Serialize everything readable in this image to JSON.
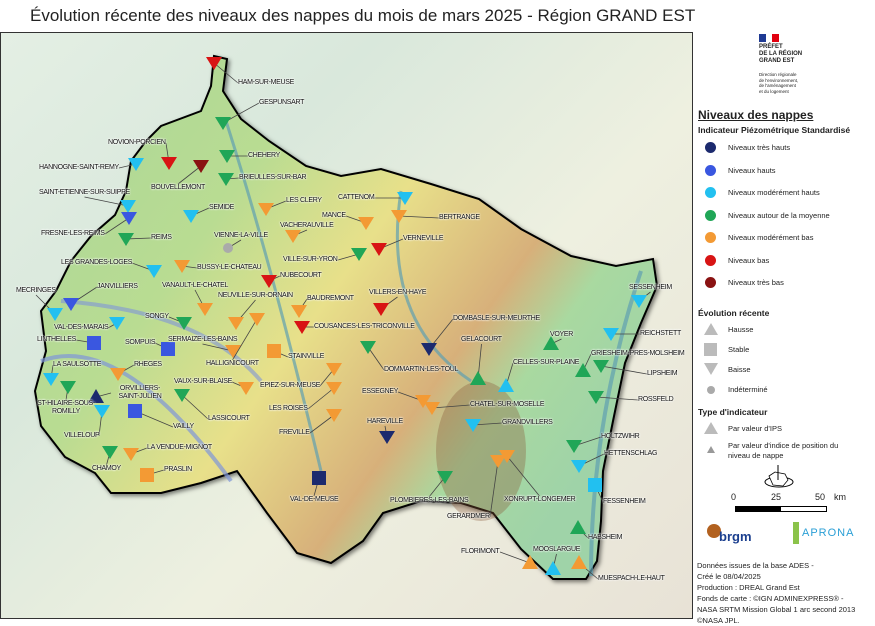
{
  "title": "Évolution récente des niveaux des nappes du mois de mars 2025 - Région GRAND EST",
  "colors": {
    "tres_hauts": "#1c2a6e",
    "hauts": "#3a57e0",
    "mod_hauts": "#22c0f0",
    "moyenne": "#20a657",
    "mod_bas": "#f39a34",
    "bas": "#d81414",
    "tres_bas": "#8a1212",
    "indetermine": "#aaaaaa"
  },
  "legend": {
    "prefet": [
      "PRÉFET",
      "DE LA RÉGION",
      "GRAND EST"
    ],
    "dreal": [
      "Direction régionale",
      "de l'environnement,",
      "de l'aménagement",
      "et du logement"
    ],
    "heading": "Niveaux des nappes",
    "ips_heading": "Indicateur Piézométrique Standardisé",
    "levels": [
      {
        "key": "tres_hauts",
        "label": "Niveaux très hauts"
      },
      {
        "key": "hauts",
        "label": "Niveaux hauts"
      },
      {
        "key": "mod_hauts",
        "label": "Niveaux modérément hauts"
      },
      {
        "key": "moyenne",
        "label": "Niveaux autour de la moyenne"
      },
      {
        "key": "mod_bas",
        "label": "Niveaux modérément bas"
      },
      {
        "key": "bas",
        "label": "Niveaux bas"
      },
      {
        "key": "tres_bas",
        "label": "Niveaux très bas"
      }
    ],
    "trend_heading": "Évolution récente",
    "trends": [
      {
        "key": "hausse",
        "label": "Hausse"
      },
      {
        "key": "stable",
        "label": "Stable"
      },
      {
        "key": "baisse",
        "label": "Baisse"
      },
      {
        "key": "indetermine",
        "label": "Indéterminé"
      }
    ],
    "type_heading": "Type d'indicateur",
    "types": [
      {
        "label": "Par valeur d'IPS"
      },
      {
        "label": "Par valeur d'indice de position du niveau de nappe"
      }
    ],
    "scale": {
      "ticks": [
        "0",
        "25",
        "50"
      ],
      "unit": "km"
    },
    "logos": {
      "brgm": "brgm",
      "apron": "APRONA"
    },
    "credits": [
      "Données issues de la base ADES -",
      "Créé le 08/04/2025",
      "Production : DREAL Grand Est",
      "Fonds de carte : ©IGN ADMINEXPRESS® -",
      "NASA SRTM Mission Global 1 arc second 2013",
      "©NASA JPL."
    ]
  },
  "stations": [
    {
      "name": "HAM-SUR-MEUSE",
      "level": "bas",
      "trend": "baisse"
    },
    {
      "name": "GESPUNSART",
      "level": "moyenne",
      "trend": "baisse"
    },
    {
      "name": "NOVION-PORCIEN",
      "level": "bas",
      "trend": "baisse"
    },
    {
      "name": "HANNOGNE-SAINT-REMY",
      "level": "mod_hauts",
      "trend": "baisse"
    },
    {
      "name": "CHEHERY",
      "level": "moyenne",
      "trend": "baisse"
    },
    {
      "name": "BOUVELLEMONT",
      "level": "tres_bas",
      "trend": "baisse"
    },
    {
      "name": "BRIEULLES-SUR-BAR",
      "level": "moyenne",
      "trend": "baisse"
    },
    {
      "name": "SAINT-ETIENNE-SUR-SUIPPE",
      "level": "mod_hauts",
      "trend": "baisse"
    },
    {
      "name": "FRESNE-LES-REIMS",
      "level": "hauts",
      "trend": "baisse"
    },
    {
      "name": "SEMIDE",
      "level": "mod_hauts",
      "trend": "baisse"
    },
    {
      "name": "LES CLERY",
      "level": "mod_bas",
      "trend": "baisse"
    },
    {
      "name": "REIMS",
      "level": "moyenne",
      "trend": "baisse"
    },
    {
      "name": "VIENNE-LA-VILLE",
      "level": "indetermine",
      "trend": "indetermine"
    },
    {
      "name": "CATTENOM",
      "level": "mod_hauts",
      "trend": "baisse"
    },
    {
      "name": "MANCE",
      "level": "mod_bas",
      "trend": "baisse"
    },
    {
      "name": "BERTRANGE",
      "level": "mod_bas",
      "trend": "baisse"
    },
    {
      "name": "VACHERAUVILLE",
      "level": "mod_bas",
      "trend": "baisse"
    },
    {
      "name": "VERNEVILLE",
      "level": "bas",
      "trend": "baisse"
    },
    {
      "name": "VILLE-SUR-YRON",
      "level": "moyenne",
      "trend": "baisse"
    },
    {
      "name": "BUSSY-LE-CHATEAU",
      "level": "mod_bas",
      "trend": "baisse"
    },
    {
      "name": "LES GRANDES-LOGES",
      "level": "mod_hauts",
      "trend": "baisse"
    },
    {
      "name": "NUBECOURT",
      "level": "bas",
      "trend": "baisse"
    },
    {
      "name": "MECRINGES",
      "level": "mod_hauts",
      "trend": "baisse"
    },
    {
      "name": "JANVILLIERS",
      "level": "hauts",
      "trend": "baisse"
    },
    {
      "name": "VANAULT-LE-CHATEL",
      "level": "mod_bas",
      "trend": "baisse"
    },
    {
      "name": "NEUVILLE-SUR-ORNAIN",
      "level": "mod_bas",
      "trend": "baisse"
    },
    {
      "name": "BAUDREMONT",
      "level": "mod_bas",
      "trend": "baisse"
    },
    {
      "name": "VILLERS-EN-HAYE",
      "level": "bas",
      "trend": "baisse"
    },
    {
      "name": "VAL-DES-MARAIS",
      "level": "mod_hauts",
      "trend": "baisse"
    },
    {
      "name": "SONGY",
      "level": "moyenne",
      "trend": "baisse"
    },
    {
      "name": "COUSANCES-LES-TRICONVILLE",
      "level": "bas",
      "trend": "baisse"
    },
    {
      "name": "DOMBASLE-SUR-MEURTHE",
      "level": "tres_hauts",
      "trend": "baisse"
    },
    {
      "name": "LINTHELLES",
      "level": "hauts",
      "trend": "stable"
    },
    {
      "name": "SOMPUIS",
      "level": "hauts",
      "trend": "stable"
    },
    {
      "name": "SERMAIZE-LES-BAINS",
      "level": "mod_bas",
      "trend": "baisse"
    },
    {
      "name": "HALLIGNICOURT",
      "level": "mod_bas",
      "trend": "baisse"
    },
    {
      "name": "STAINVILLE",
      "level": "mod_bas",
      "trend": "stable"
    },
    {
      "name": "DOMMARTIN-LES-TOUL",
      "level": "moyenne",
      "trend": "baisse"
    },
    {
      "name": "GELACOURT",
      "level": "moyenne",
      "trend": "hausse"
    },
    {
      "name": "VOYER",
      "level": "moyenne",
      "trend": "hausse"
    },
    {
      "name": "CELLES-SUR-PLAINE",
      "level": "mod_hauts",
      "trend": "hausse"
    },
    {
      "name": "SESSENHEIM",
      "level": "mod_hauts",
      "trend": "baisse"
    },
    {
      "name": "REICHSTETT",
      "level": "mod_hauts",
      "trend": "baisse"
    },
    {
      "name": "GRIESHEIM-PRES-MOLSHEIM",
      "level": "moyenne",
      "trend": "hausse"
    },
    {
      "name": "LIPSHEIM",
      "level": "moyenne",
      "trend": "baisse"
    },
    {
      "name": "LA SAULSOTTE",
      "level": "mod_hauts",
      "trend": "baisse"
    },
    {
      "name": "RHEGES",
      "level": "mod_bas",
      "trend": "baisse"
    },
    {
      "name": "ST-HILAIRE-SOUS-ROMILLY",
      "level": "moyenne",
      "trend": "baisse"
    },
    {
      "name": "ORVILLIERS-SAINT-JULIEN",
      "level": "tres_hauts",
      "trend": "hausse"
    },
    {
      "name": "VILLELOUP",
      "level": "mod_hauts",
      "trend": "baisse"
    },
    {
      "name": "VAILLY",
      "level": "hauts",
      "trend": "stable"
    },
    {
      "name": "VAUX-SUR-BLAISE",
      "level": "mod_bas",
      "trend": "baisse"
    },
    {
      "name": "LASSICOURT",
      "level": "moyenne",
      "trend": "baisse"
    },
    {
      "name": "EPIEZ-SUR-MEUSE",
      "level": "mod_bas",
      "trend": "baisse"
    },
    {
      "name": "LES ROISES",
      "level": "mod_bas",
      "trend": "baisse"
    },
    {
      "name": "FREVILLE",
      "level": "mod_bas",
      "trend": "baisse"
    },
    {
      "name": "ESSEGNEY",
      "level": "mod_bas",
      "trend": "baisse"
    },
    {
      "name": "CHATEL-SUR-MOSELLE",
      "level": "mod_bas",
      "trend": "baisse"
    },
    {
      "name": "ROSSFELD",
      "level": "moyenne",
      "trend": "baisse"
    },
    {
      "name": "HAREVILLE",
      "level": "tres_hauts",
      "trend": "baisse"
    },
    {
      "name": "GRANDVILLERS",
      "level": "mod_hauts",
      "trend": "baisse"
    },
    {
      "name": "HOLTZWIHR",
      "level": "moyenne",
      "trend": "baisse"
    },
    {
      "name": "HETTENSCHLAG",
      "level": "mod_hauts",
      "trend": "baisse"
    },
    {
      "name": "LA VENDUE-MIGNOT",
      "level": "mod_bas",
      "trend": "baisse"
    },
    {
      "name": "CHAMOY",
      "level": "moyenne",
      "trend": "baisse"
    },
    {
      "name": "PRASLIN",
      "level": "mod_bas",
      "trend": "stable"
    },
    {
      "name": "VAL-DE-MEUSE",
      "level": "tres_hauts",
      "trend": "stable"
    },
    {
      "name": "XONRUPT-LONGEMER",
      "level": "mod_bas",
      "trend": "baisse"
    },
    {
      "name": "GERARDMER",
      "level": "mod_bas",
      "trend": "baisse"
    },
    {
      "name": "PLOMBIERES-LES-BAINS",
      "level": "moyenne",
      "trend": "baisse"
    },
    {
      "name": "FESSENHEIM",
      "level": "mod_hauts",
      "trend": "stable"
    },
    {
      "name": "HABSHEIM",
      "level": "moyenne",
      "trend": "hausse"
    },
    {
      "name": "FLORIMONT",
      "level": "mod_bas",
      "trend": "hausse"
    },
    {
      "name": "MOOSLARGUE",
      "level": "mod_hauts",
      "trend": "hausse"
    },
    {
      "name": "MUESPACH-LE-HAUT",
      "level": "mod_bas",
      "trend": "hausse"
    }
  ]
}
